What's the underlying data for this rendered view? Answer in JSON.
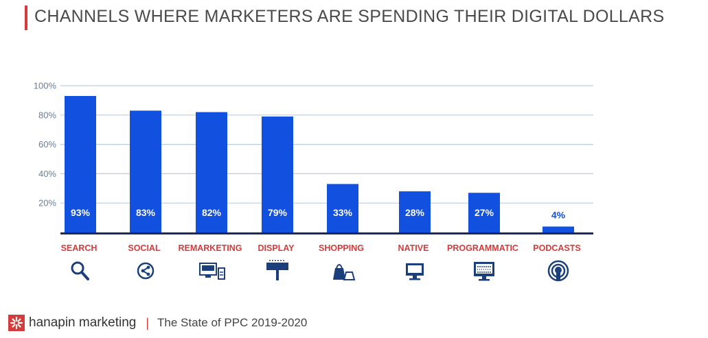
{
  "title": "CHANNELS WHERE MARKETERS ARE SPENDING THEIR DIGITAL DOLLARS",
  "footer": {
    "brand": "hanapin marketing",
    "separator": "|",
    "report": "The State of PPC 2019-2020"
  },
  "colors": {
    "bar": "#1250e0",
    "accent": "#d63b3b",
    "icon": "#1a3f7a",
    "grid": "#b9cde3"
  },
  "chart_data": {
    "type": "bar",
    "categories": [
      "SEARCH",
      "SOCIAL",
      "REMARKETING",
      "DISPLAY",
      "SHOPPING",
      "NATIVE",
      "PROGRAMMATIC",
      "PODCASTS"
    ],
    "values": [
      93,
      83,
      82,
      79,
      33,
      28,
      27,
      4
    ],
    "value_labels": [
      "93%",
      "83%",
      "82%",
      "79%",
      "33%",
      "28%",
      "27%",
      "4%"
    ],
    "yticks": [
      "20%",
      "40%",
      "60%",
      "80%",
      "100%"
    ],
    "ylim": [
      0,
      100
    ],
    "grid": true,
    "category_icons": [
      "magnifier-icon",
      "share-icon",
      "desktop-and-phone-icon",
      "billboard-icon",
      "shopping-bags-icon",
      "monitor-icon",
      "code-monitor-icon",
      "podcast-icon"
    ]
  }
}
